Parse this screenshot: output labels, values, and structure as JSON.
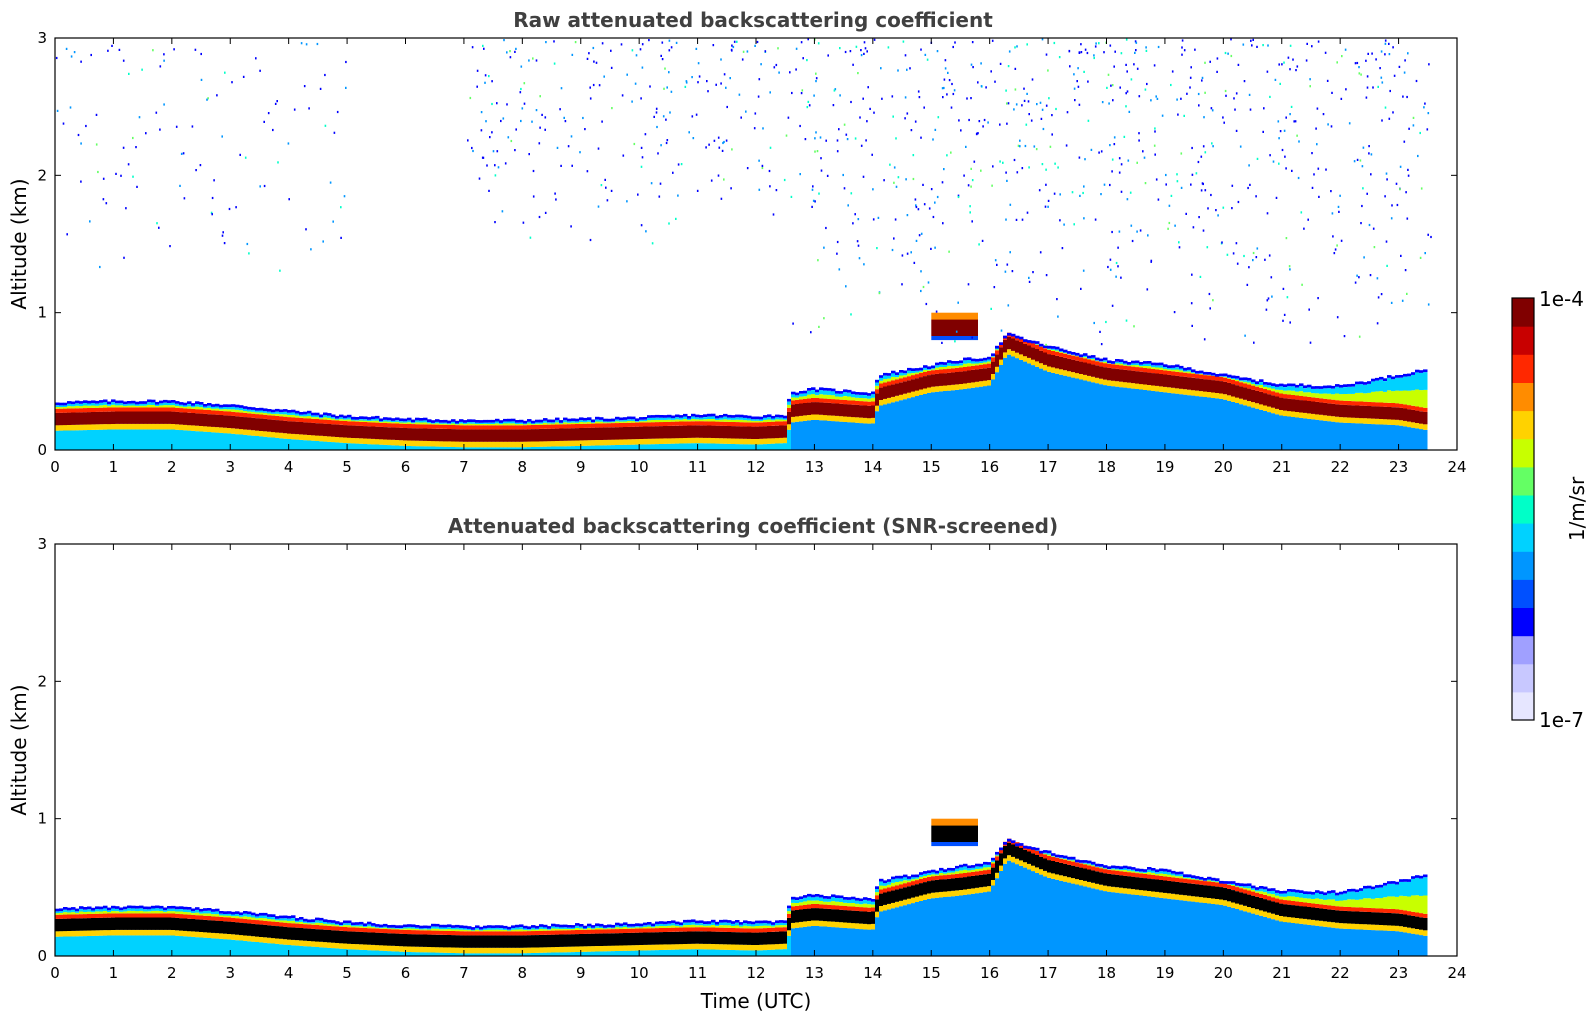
{
  "chart_data": [
    {
      "type": "heatmap",
      "title": "Raw attenuated backscattering coefficient",
      "xlabel": "",
      "ylabel": "Altitude (km)",
      "xlim": [
        0,
        24
      ],
      "ylim": [
        0,
        3
      ],
      "xticks": [
        "0",
        "1",
        "2",
        "3",
        "4",
        "5",
        "6",
        "7",
        "8",
        "9",
        "10",
        "11",
        "12",
        "13",
        "14",
        "15",
        "16",
        "17",
        "18",
        "19",
        "20",
        "21",
        "22",
        "23",
        "24"
      ],
      "yticks": [
        "0",
        "1",
        "2",
        "3"
      ],
      "data_end_time": 23.55,
      "screened": false,
      "layer_top_km": [
        [
          0,
          0.35
        ],
        [
          1,
          0.36
        ],
        [
          2,
          0.36
        ],
        [
          3,
          0.33
        ],
        [
          4,
          0.29
        ],
        [
          5,
          0.25
        ],
        [
          6,
          0.23
        ],
        [
          7,
          0.22
        ],
        [
          8,
          0.22
        ],
        [
          9,
          0.23
        ],
        [
          10,
          0.24
        ],
        [
          11,
          0.26
        ],
        [
          12,
          0.25
        ],
        [
          12.5,
          0.26
        ],
        [
          12.6,
          0.42
        ],
        [
          13,
          0.45
        ],
        [
          14,
          0.42
        ],
        [
          14.1,
          0.55
        ],
        [
          15,
          0.62
        ],
        [
          15.5,
          0.66
        ],
        [
          16,
          0.68
        ],
        [
          16.3,
          0.85
        ],
        [
          17,
          0.76
        ],
        [
          18,
          0.66
        ],
        [
          19,
          0.63
        ],
        [
          20,
          0.55
        ],
        [
          21,
          0.48
        ],
        [
          22,
          0.47
        ],
        [
          23,
          0.55
        ],
        [
          23.55,
          0.6
        ]
      ],
      "layer_core_km": [
        [
          0,
          0.22
        ],
        [
          1,
          0.23
        ],
        [
          2,
          0.23
        ],
        [
          3,
          0.2
        ],
        [
          4,
          0.16
        ],
        [
          5,
          0.13
        ],
        [
          6,
          0.11
        ],
        [
          7,
          0.1
        ],
        [
          8,
          0.1
        ],
        [
          9,
          0.11
        ],
        [
          10,
          0.12
        ],
        [
          11,
          0.13
        ],
        [
          12,
          0.12
        ],
        [
          12.5,
          0.13
        ],
        [
          12.6,
          0.28
        ],
        [
          13,
          0.3
        ],
        [
          14,
          0.27
        ],
        [
          14.1,
          0.4
        ],
        [
          15,
          0.5
        ],
        [
          15.5,
          0.52
        ],
        [
          16,
          0.55
        ],
        [
          16.3,
          0.78
        ],
        [
          17,
          0.65
        ],
        [
          18,
          0.55
        ],
        [
          19,
          0.5
        ],
        [
          20,
          0.45
        ],
        [
          21,
          0.33
        ],
        [
          22,
          0.28
        ],
        [
          23,
          0.26
        ],
        [
          23.55,
          0.22
        ]
      ],
      "elevated_layer": {
        "start": 15.0,
        "end": 15.8,
        "bottom_km": 0.8,
        "top_km": 1.0
      },
      "noise_regions": [
        {
          "start": 0,
          "end": 5,
          "min_km": 1.2,
          "max_km": 3,
          "density": 0.18
        },
        {
          "start": 7,
          "end": 12.5,
          "min_km": 1.5,
          "max_km": 3,
          "density": 0.35
        },
        {
          "start": 12.5,
          "end": 23.55,
          "min_km": 0.7,
          "max_km": 3,
          "density": 0.55
        }
      ]
    },
    {
      "type": "heatmap",
      "title": "Attenuated backscattering coefficient (SNR-screened)",
      "xlabel": "Time (UTC)",
      "ylabel": "Altitude (km)",
      "xlim": [
        0,
        24
      ],
      "ylim": [
        0,
        3
      ],
      "xticks": [
        "0",
        "1",
        "2",
        "3",
        "4",
        "5",
        "6",
        "7",
        "8",
        "9",
        "10",
        "11",
        "12",
        "13",
        "14",
        "15",
        "16",
        "17",
        "18",
        "19",
        "20",
        "21",
        "22",
        "23",
        "24"
      ],
      "yticks": [
        "0",
        "1",
        "2",
        "3"
      ],
      "data_end_time": 23.55,
      "screened": true,
      "saturated_color": "#000000"
    }
  ],
  "colorbar": {
    "max_label": "1e-4",
    "min_label": "1e-7",
    "label": "1/m/sr",
    "colors": [
      "#e6e6ff",
      "#c8c8ff",
      "#a0a0ff",
      "#0000ff",
      "#0050ff",
      "#0096ff",
      "#00d2ff",
      "#00ffc8",
      "#64ff64",
      "#c8ff00",
      "#ffd200",
      "#ff8c00",
      "#ff2800",
      "#c80000",
      "#800000"
    ]
  }
}
